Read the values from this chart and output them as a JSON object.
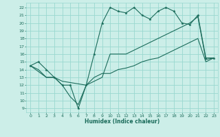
{
  "bg_color": "#cceee8",
  "grid_color": "#99d8d0",
  "line_color": "#1a6b5a",
  "xlabel": "Humidex (Indice chaleur)",
  "xlim": [
    -0.5,
    23.5
  ],
  "ylim": [
    8.5,
    22.6
  ],
  "xticks": [
    0,
    1,
    2,
    3,
    4,
    5,
    6,
    7,
    8,
    9,
    10,
    11,
    12,
    13,
    14,
    15,
    16,
    17,
    18,
    19,
    20,
    21,
    22,
    23
  ],
  "yticks": [
    9,
    10,
    11,
    12,
    13,
    14,
    15,
    16,
    17,
    18,
    19,
    20,
    21,
    22
  ],
  "line1_x": [
    0,
    1,
    2,
    3,
    4,
    5,
    6,
    7,
    8,
    9,
    10,
    11,
    12,
    13,
    14,
    15,
    16,
    17,
    18,
    19,
    20,
    21,
    22,
    23
  ],
  "line1_y": [
    14.5,
    15.0,
    14.0,
    13.0,
    12.0,
    12.0,
    9.0,
    12.0,
    16.0,
    20.0,
    22.0,
    21.5,
    21.3,
    22.0,
    21.0,
    20.5,
    21.5,
    22.0,
    21.5,
    20.0,
    19.8,
    21.0,
    15.5,
    15.5
  ],
  "line2_x": [
    0,
    1,
    2,
    3,
    4,
    5,
    6,
    7,
    8,
    9,
    10,
    11,
    12,
    13,
    14,
    15,
    16,
    17,
    18,
    19,
    20,
    21,
    22,
    23
  ],
  "line2_y": [
    14.5,
    14.0,
    13.0,
    13.0,
    12.0,
    10.5,
    9.5,
    12.0,
    13.0,
    13.5,
    13.5,
    14.0,
    14.2,
    14.5,
    15.0,
    15.3,
    15.5,
    16.0,
    16.5,
    17.0,
    17.5,
    18.0,
    15.0,
    15.5
  ],
  "line3_x": [
    0,
    2,
    3,
    4,
    7,
    9,
    10,
    12,
    13,
    14,
    16,
    17,
    19,
    20,
    21,
    22,
    23
  ],
  "line3_y": [
    14.5,
    13.0,
    13.0,
    12.5,
    12.0,
    13.0,
    16.0,
    16.0,
    16.5,
    17.0,
    18.0,
    18.5,
    19.5,
    20.0,
    20.8,
    15.3,
    15.5
  ]
}
